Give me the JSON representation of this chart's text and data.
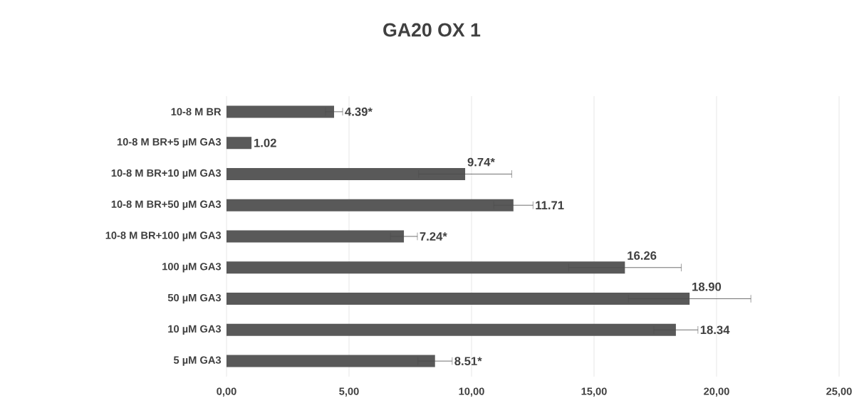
{
  "chart_data": {
    "type": "bar",
    "orientation": "horizontal",
    "title": "GA20 OX 1",
    "categories": [
      "10-8 M BR",
      "10-8 M BR+5 µM GA3",
      "10-8 M BR+10 µM GA3",
      "10-8 M BR+50 µM GA3",
      "10-8 M BR+100 µM GA3",
      "100 µM GA3",
      "50 µM GA3",
      "10 µM GA3",
      "5 µM GA3"
    ],
    "values": [
      4.39,
      1.02,
      9.74,
      11.71,
      7.24,
      16.26,
      18.9,
      18.34,
      8.51
    ],
    "value_labels": [
      "4.39*",
      "1.02",
      "9.74*",
      "11.71",
      "7.24*",
      "16.26",
      "18.90",
      "18.34",
      "8.51*"
    ],
    "errors": [
      0.35,
      null,
      1.9,
      0.8,
      0.55,
      2.3,
      2.5,
      0.9,
      0.7
    ],
    "color": "#595959",
    "xlim": [
      0,
      25
    ],
    "xticks": [
      {
        "value": 0,
        "label": "0,00"
      },
      {
        "value": 5,
        "label": "5,00"
      },
      {
        "value": 10,
        "label": "10,00"
      },
      {
        "value": 15,
        "label": "15,00"
      },
      {
        "value": 20,
        "label": "20,00"
      },
      {
        "value": 25,
        "label": "25,00"
      }
    ],
    "grid": "x"
  }
}
